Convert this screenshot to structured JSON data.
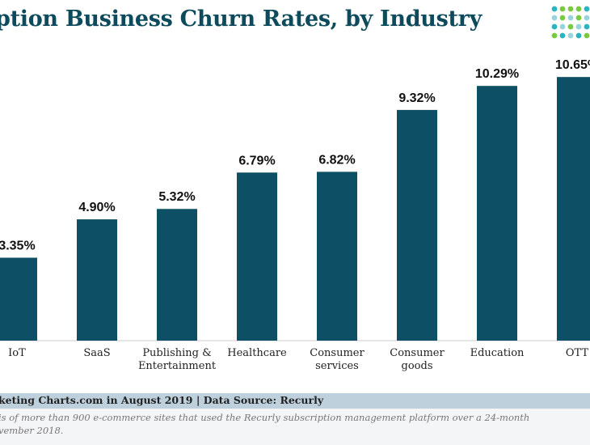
{
  "chart_data": {
    "type": "bar",
    "title": "ption Business Churn Rates, by Industry",
    "categories": [
      "IoT",
      "SaaS",
      "Publishing & Entertainment",
      "Healthcare",
      "Consumer services",
      "Consumer goods",
      "Education",
      "OTT"
    ],
    "category_lines": [
      [
        "IoT"
      ],
      [
        "SaaS"
      ],
      [
        "Publishing &",
        "Entertainment"
      ],
      [
        "Healthcare"
      ],
      [
        "Consumer",
        "services"
      ],
      [
        "Consumer",
        "goods"
      ],
      [
        "Education"
      ],
      [
        "OTT"
      ]
    ],
    "values": [
      3.35,
      4.9,
      5.32,
      6.79,
      6.82,
      9.32,
      10.29,
      10.65
    ],
    "value_labels": [
      "3.35%",
      "4.90%",
      "5.32%",
      "6.79%",
      "6.82%",
      "9.32%",
      "10.29%",
      "10.65%"
    ],
    "ylim": [
      0,
      11.8
    ],
    "bar_color": "#0d4f64",
    "grid": false,
    "legend": "none"
  },
  "footer": {
    "source": "keting Charts.com in August 2019 | Data Source: Recurly",
    "note_line1": "is of more than 900 e-commerce sites that used the Recurly subscription management platform over a 24-month",
    "note_line2": "vember 2018."
  },
  "colors": {
    "title": "#0d4a5c",
    "footer_bar": "#bdd0dc",
    "logo": [
      "#2bb3c0",
      "#7ac943",
      "#9ad3de"
    ]
  }
}
